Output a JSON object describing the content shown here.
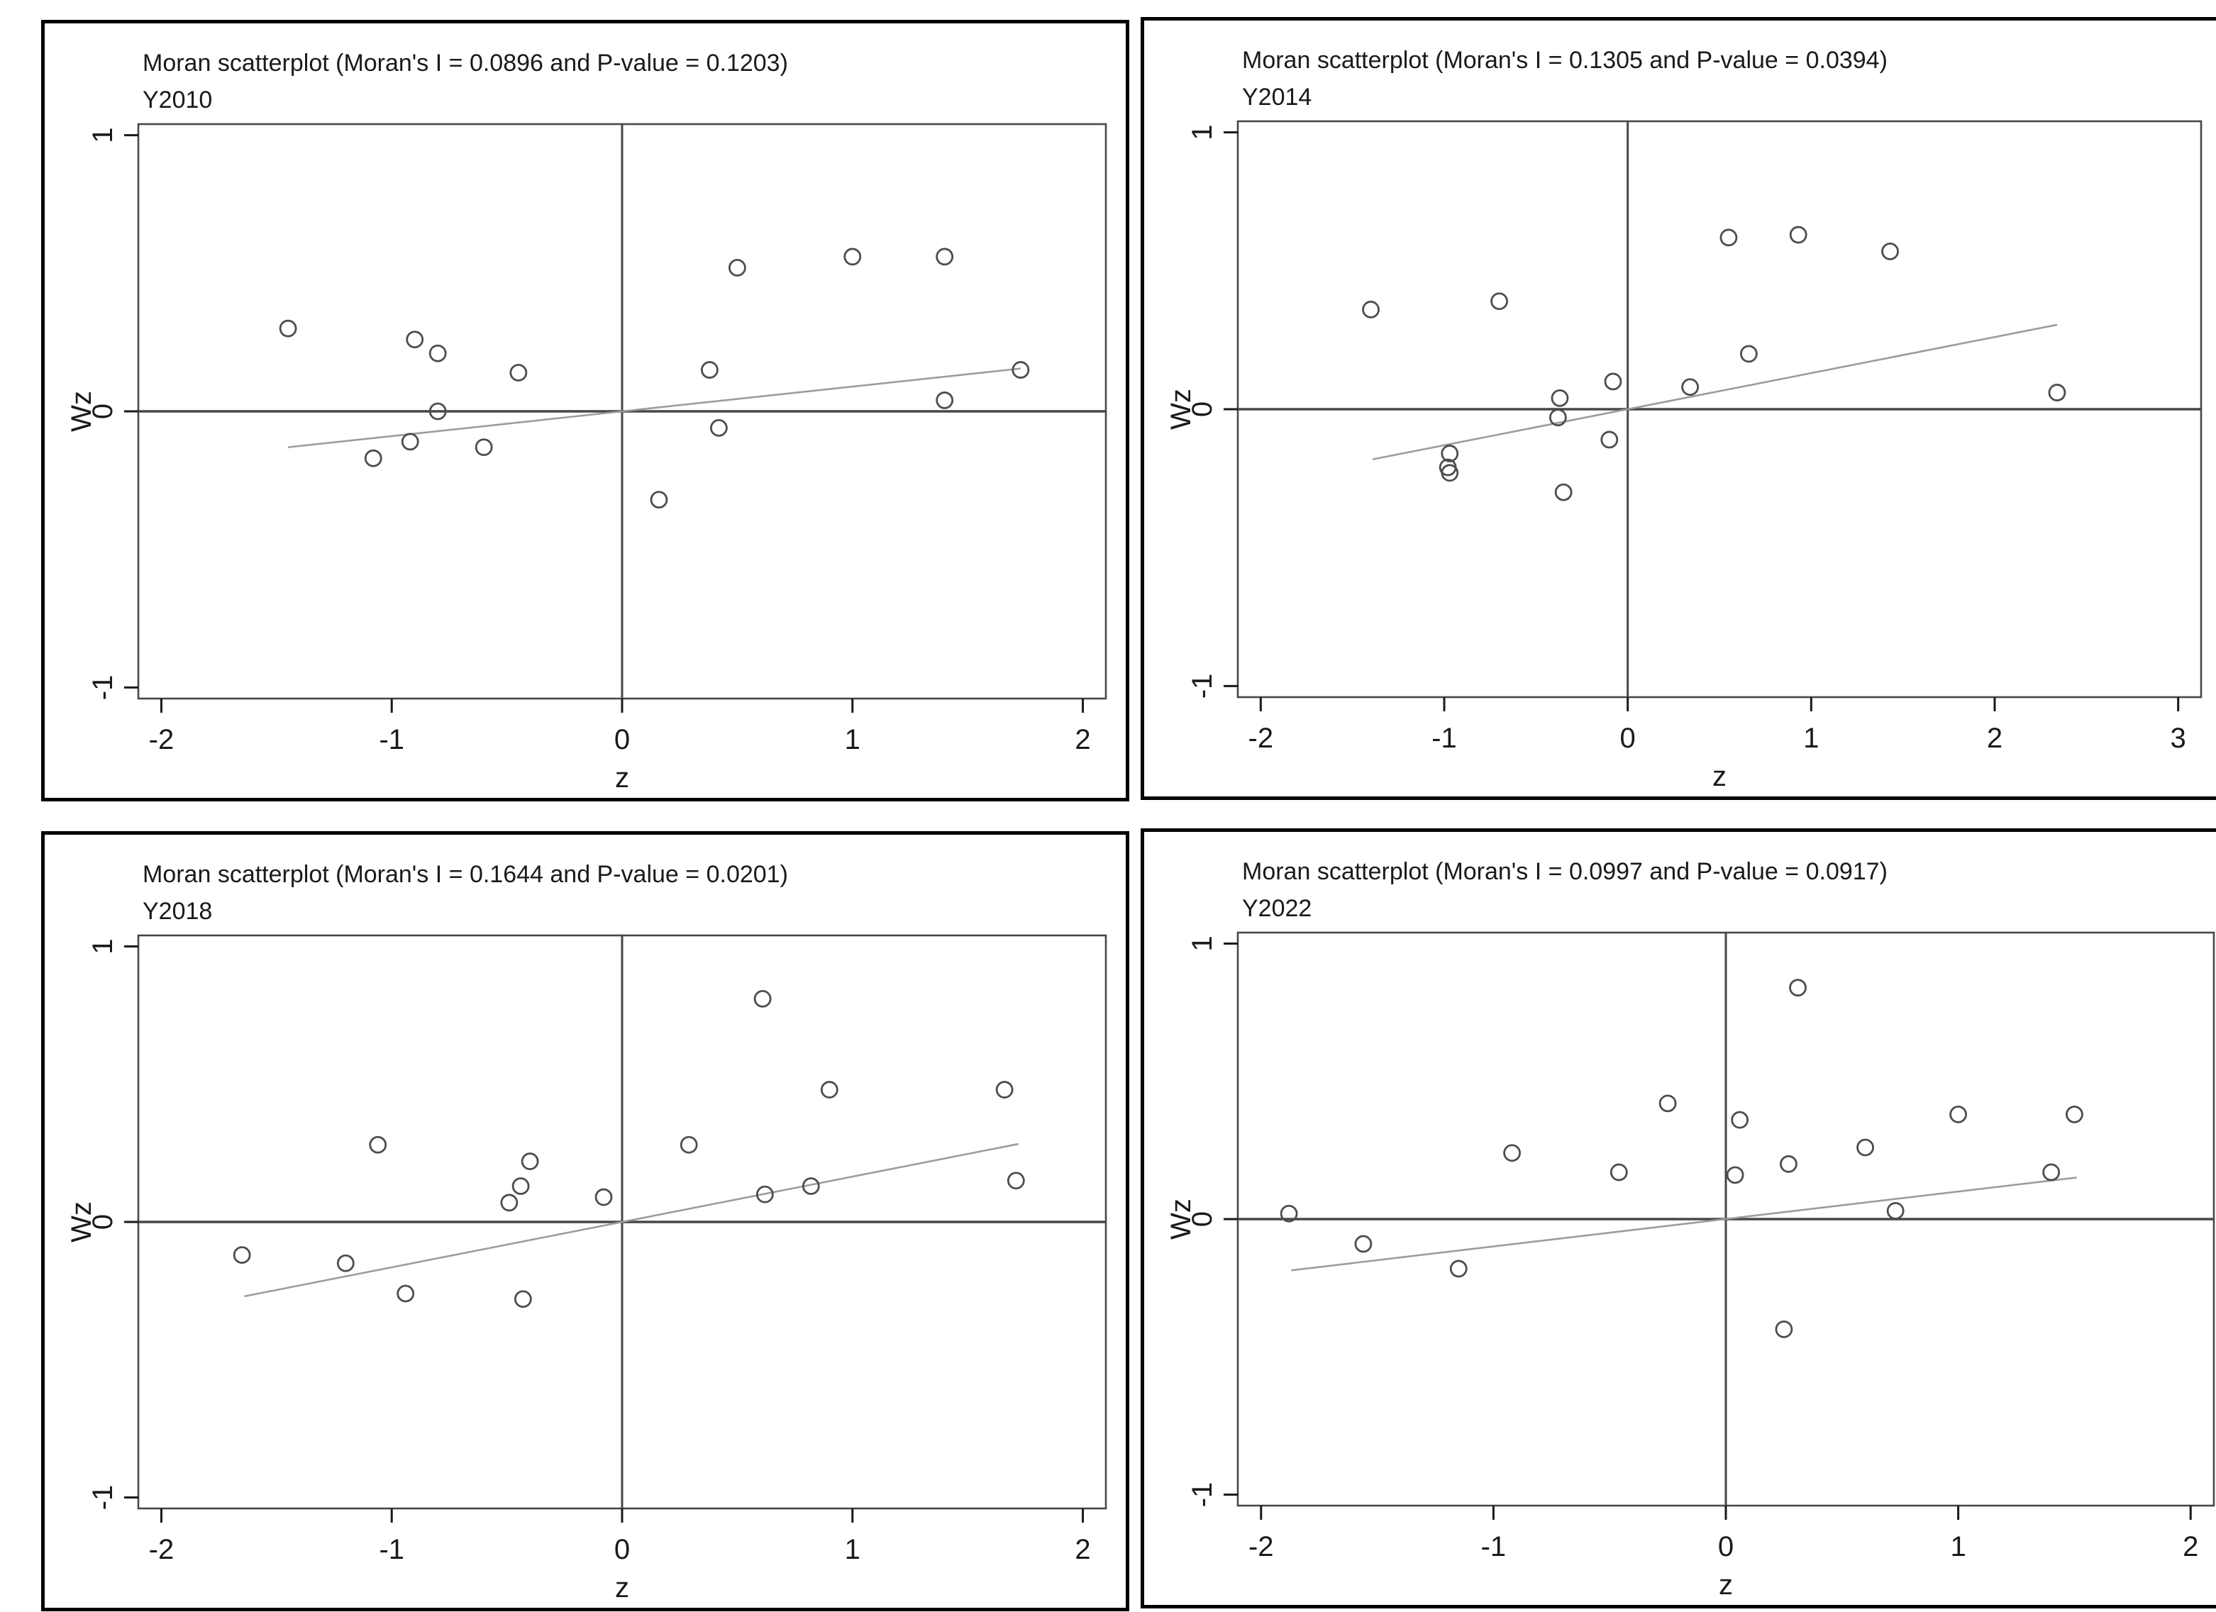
{
  "style": {
    "background": "#ffffff",
    "frame_color": "#000000",
    "plot_border_color": "#474747",
    "ref_line_color": "#474747",
    "fit_line_color": "#9c9c9c",
    "marker_color": "#4d4d4d",
    "tick_color": "#1a1a1a",
    "text_color": "#1a1a1a"
  },
  "chart_data": [
    {
      "type": "scatter",
      "title": "Moran scatterplot (Moran's I = 0.0896 and P-value = 0.1203)",
      "subtitle": "Y2010",
      "moran_i": 0.0896,
      "p_value": 0.1203,
      "xlabel": "z",
      "ylabel": "Wz",
      "xlim": [
        -2,
        2
      ],
      "ylim": [
        -1,
        1
      ],
      "xticks": [
        -2,
        -1,
        0,
        1,
        2
      ],
      "yticks": [
        -1,
        0,
        1
      ],
      "ref_lines": {
        "x": 0,
        "y": 0
      },
      "points": [
        [
          -1.45,
          0.3
        ],
        [
          -1.08,
          -0.17
        ],
        [
          -0.92,
          -0.11
        ],
        [
          -0.9,
          0.26
        ],
        [
          -0.8,
          0.21
        ],
        [
          -0.8,
          0.0
        ],
        [
          -0.6,
          -0.13
        ],
        [
          -0.45,
          0.14
        ],
        [
          0.16,
          -0.32
        ],
        [
          0.38,
          0.15
        ],
        [
          0.42,
          -0.06
        ],
        [
          0.5,
          0.52
        ],
        [
          1.0,
          0.56
        ],
        [
          1.4,
          0.56
        ],
        [
          1.4,
          0.04
        ],
        [
          1.73,
          0.15
        ]
      ],
      "fit_line": {
        "x1": -1.45,
        "y1": -0.13,
        "x2": 1.73,
        "y2": 0.155
      }
    },
    {
      "type": "scatter",
      "title": "Moran scatterplot (Moran's I = 0.1305 and P-value = 0.0394)",
      "subtitle": "Y2014",
      "moran_i": 0.1305,
      "p_value": 0.0394,
      "xlabel": "z",
      "ylabel": "Wz",
      "xlim": [
        -2,
        3
      ],
      "ylim": [
        -1,
        1
      ],
      "xticks": [
        -2,
        -1,
        0,
        1,
        2,
        3
      ],
      "yticks": [
        -1,
        0,
        1
      ],
      "ref_lines": {
        "x": 0,
        "y": 0
      },
      "points": [
        [
          -1.4,
          0.36
        ],
        [
          -0.98,
          -0.21
        ],
        [
          -0.97,
          -0.16
        ],
        [
          -0.97,
          -0.23
        ],
        [
          -0.7,
          0.39
        ],
        [
          -0.38,
          -0.03
        ],
        [
          -0.37,
          0.04
        ],
        [
          -0.35,
          -0.3
        ],
        [
          -0.1,
          -0.11
        ],
        [
          -0.08,
          0.1
        ],
        [
          0.34,
          0.08
        ],
        [
          0.55,
          0.62
        ],
        [
          0.66,
          0.2
        ],
        [
          0.93,
          0.63
        ],
        [
          1.43,
          0.57
        ],
        [
          2.34,
          0.06
        ]
      ],
      "fit_line": {
        "x1": -1.39,
        "y1": -0.181,
        "x2": 2.34,
        "y2": 0.305
      }
    },
    {
      "type": "scatter",
      "title": "Moran scatterplot (Moran's I = 0.1644 and P-value = 0.0201)",
      "subtitle": "Y2018",
      "moran_i": 0.1644,
      "p_value": 0.0201,
      "xlabel": "z",
      "ylabel": "Wz",
      "xlim": [
        -2,
        2
      ],
      "ylim": [
        -1,
        1
      ],
      "xticks": [
        -2,
        -1,
        0,
        1,
        2
      ],
      "yticks": [
        -1,
        0,
        1
      ],
      "ref_lines": {
        "x": 0,
        "y": 0
      },
      "points": [
        [
          -1.65,
          -0.12
        ],
        [
          -1.2,
          -0.15
        ],
        [
          -1.06,
          0.28
        ],
        [
          -0.94,
          -0.26
        ],
        [
          -0.49,
          0.07
        ],
        [
          -0.44,
          0.13
        ],
        [
          -0.43,
          -0.28
        ],
        [
          -0.4,
          0.22
        ],
        [
          -0.08,
          0.09
        ],
        [
          0.29,
          0.28
        ],
        [
          0.61,
          0.81
        ],
        [
          0.62,
          0.1
        ],
        [
          0.82,
          0.13
        ],
        [
          0.9,
          0.48
        ],
        [
          1.66,
          0.48
        ],
        [
          1.71,
          0.15
        ]
      ],
      "fit_line": {
        "x1": -1.64,
        "y1": -0.27,
        "x2": 1.72,
        "y2": 0.283
      }
    },
    {
      "type": "scatter",
      "title": "Moran scatterplot (Moran's I = 0.0997 and P-value = 0.0917)",
      "subtitle": "Y2022",
      "moran_i": 0.0997,
      "p_value": 0.0917,
      "xlabel": "z",
      "ylabel": "Wz",
      "xlim": [
        -2,
        2
      ],
      "ylim": [
        -1,
        1
      ],
      "xticks": [
        -2,
        -1,
        0,
        1,
        2
      ],
      "yticks": [
        -1,
        0,
        1
      ],
      "ref_lines": {
        "x": 0,
        "y": 0
      },
      "points": [
        [
          -1.88,
          0.02
        ],
        [
          -1.56,
          -0.09
        ],
        [
          -1.15,
          -0.18
        ],
        [
          -0.92,
          0.24
        ],
        [
          -0.46,
          0.17
        ],
        [
          -0.25,
          0.42
        ],
        [
          0.04,
          0.16
        ],
        [
          0.06,
          0.36
        ],
        [
          0.25,
          -0.4
        ],
        [
          0.27,
          0.2
        ],
        [
          0.31,
          0.84
        ],
        [
          0.6,
          0.26
        ],
        [
          0.73,
          0.03
        ],
        [
          1.0,
          0.38
        ],
        [
          1.4,
          0.17
        ],
        [
          1.5,
          0.38
        ]
      ],
      "fit_line": {
        "x1": -1.87,
        "y1": -0.186,
        "x2": 1.51,
        "y2": 0.151
      }
    }
  ]
}
